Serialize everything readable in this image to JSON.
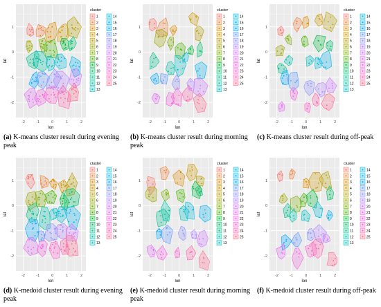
{
  "figure": {
    "panels": [
      {
        "id": "a",
        "caption_label": "(a)",
        "caption_text": "K-means cluster result during evening peak",
        "seed": 11,
        "spread": 0.55
      },
      {
        "id": "b",
        "caption_label": "(b)",
        "caption_text": "K-means cluster result during morning peak",
        "seed": 23,
        "spread": 1.0
      },
      {
        "id": "c",
        "caption_label": "(c)",
        "caption_text": "K-means cluster result during off-peak",
        "seed": 37,
        "spread": 0.95
      },
      {
        "id": "d",
        "caption_label": "(d)",
        "caption_text": "K-medoid cluster result during evening peak",
        "seed": 41,
        "spread": 0.55
      },
      {
        "id": "e",
        "caption_label": "(e)",
        "caption_text": "K-medoid cluster result during morning peak",
        "seed": 53,
        "spread": 1.0
      },
      {
        "id": "f",
        "caption_label": "(f)",
        "caption_text": "K-medoid cluster result during off-peak",
        "seed": 67,
        "spread": 0.95
      }
    ]
  },
  "chart_data": {
    "type": "scatter",
    "xlabel": "lon",
    "ylabel": "lat",
    "x_ticks": [
      "-2",
      "-1",
      "0",
      "1",
      "2"
    ],
    "y_ticks": [
      "1",
      "0",
      "-1",
      "-2"
    ],
    "xlim": [
      -2.5,
      2.3
    ],
    "ylim": [
      -2.6,
      1.9
    ],
    "legend_title": "cluster",
    "legend_position": "right",
    "grid": true,
    "clusters": [
      "1",
      "2",
      "3",
      "4",
      "5",
      "6",
      "7",
      "8",
      "9",
      "10",
      "11",
      "12",
      "13",
      "14",
      "15",
      "16",
      "17",
      "18",
      "19",
      "20",
      "21",
      "22",
      "23",
      "24",
      "25"
    ],
    "cluster_colors": [
      "#F8766D",
      "#EC823C",
      "#DE8C00",
      "#CD9600",
      "#B79F00",
      "#9DA700",
      "#7CAE00",
      "#49B500",
      "#00BA38",
      "#00BE67",
      "#00C08B",
      "#00C1A9",
      "#00BFC4",
      "#00BBDC",
      "#00B4EF",
      "#00A9FF",
      "#619CFF",
      "#8F91FF",
      "#B385FF",
      "#CF78FF",
      "#E36EF6",
      "#F564E3",
      "#FD61D1",
      "#FF65AE",
      "#FF6C91"
    ]
  }
}
